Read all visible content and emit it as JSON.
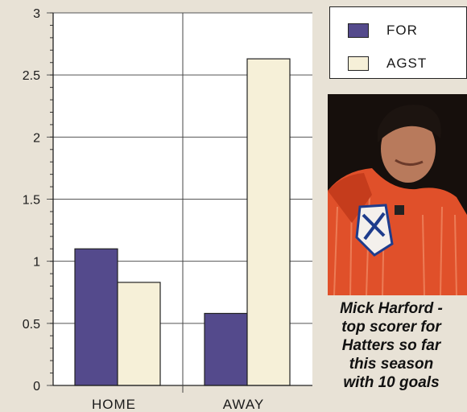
{
  "chart_data": {
    "type": "bar",
    "categories": [
      "HOME",
      "AWAY"
    ],
    "series": [
      {
        "name": "FOR",
        "values": [
          1.1,
          0.58
        ],
        "color": "#544a8c"
      },
      {
        "name": "AGST",
        "values": [
          0.83,
          2.63
        ],
        "color": "#f6f0d8"
      }
    ],
    "ylim": [
      0,
      3
    ],
    "yticks": [
      "0",
      "0.5",
      "1",
      "1.5",
      "2",
      "2.5",
      "3"
    ],
    "grid": true,
    "legend_position": "top-right"
  },
  "legend": {
    "items": [
      {
        "label": "FOR",
        "color": "#544a8c"
      },
      {
        "label": "AGST",
        "color": "#f6f0d8"
      }
    ]
  },
  "photo": {
    "icon": "footballer-photo",
    "shirt_color": "#e0502a"
  },
  "caption": {
    "lines": [
      "Mick Harford -",
      "top scorer for",
      "Hatters so far",
      "this season",
      "with 10 goals"
    ]
  }
}
